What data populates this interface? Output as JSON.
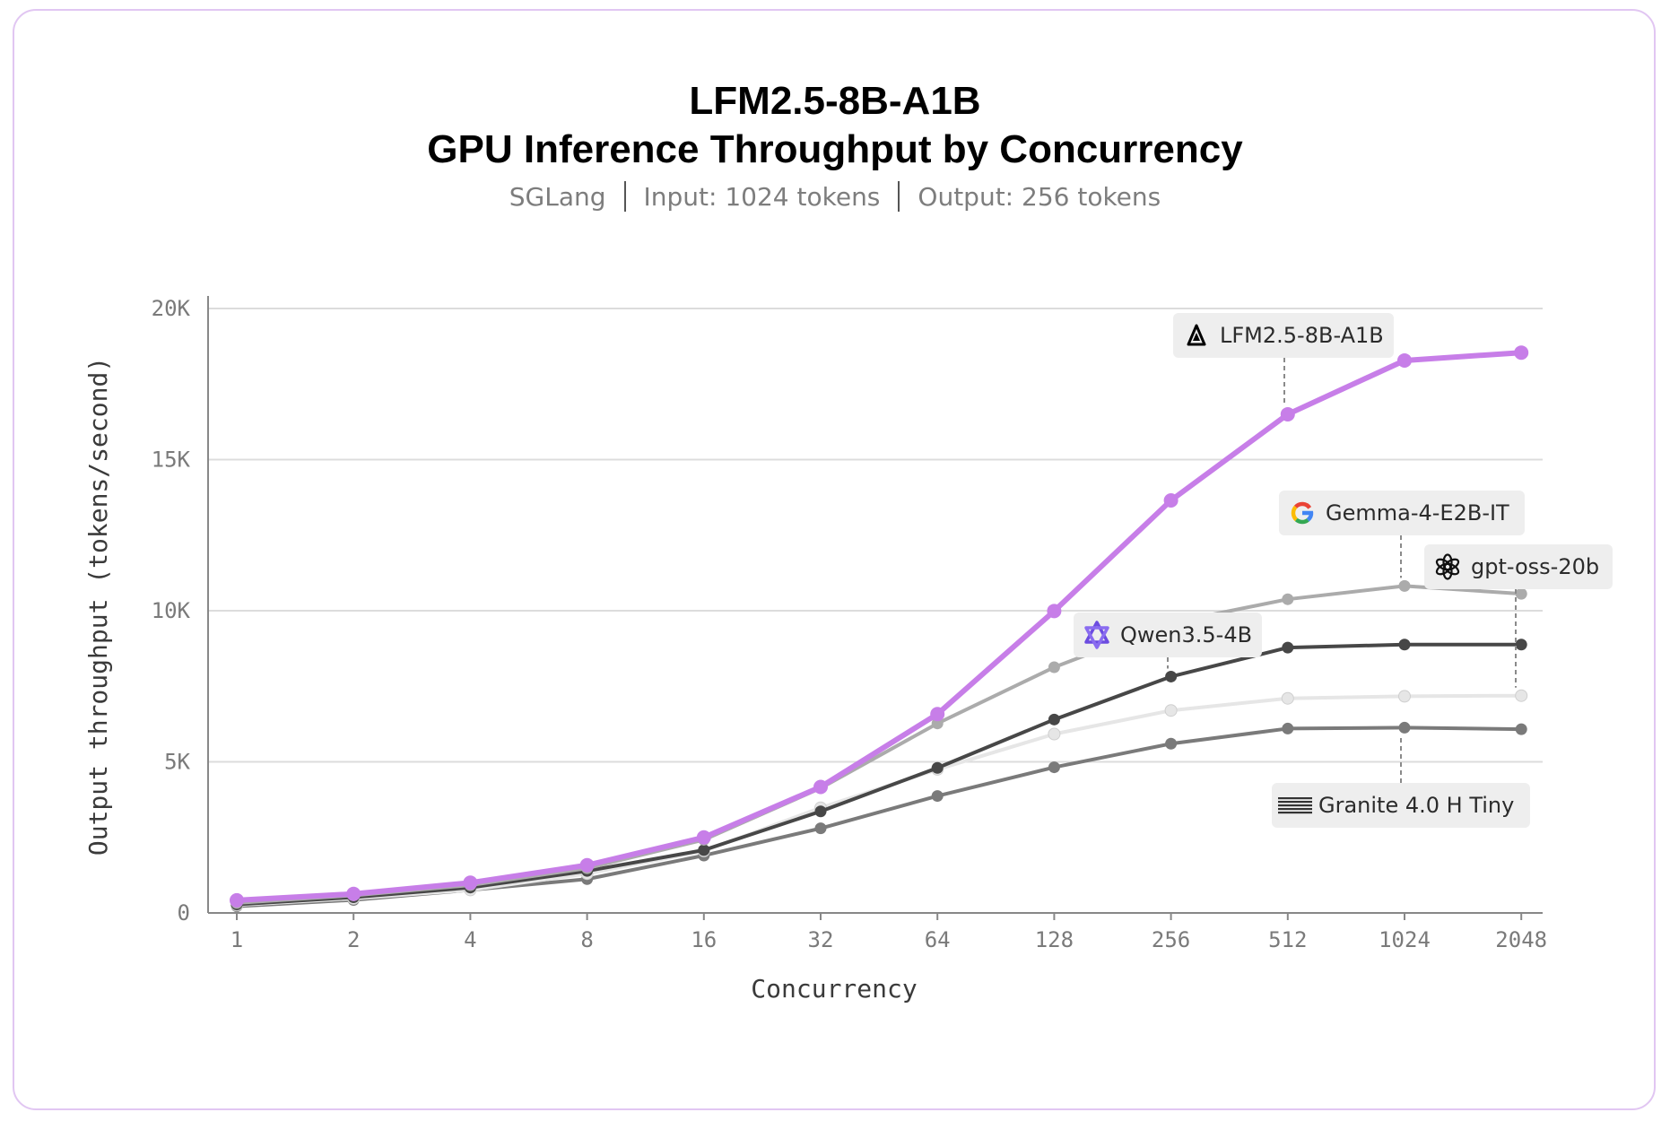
{
  "header": {
    "title_line1": "LFM2.5-8B-A1B",
    "title_line2": "GPU Inference Throughput by Concurrency",
    "subtitle_parts": [
      "SGLang",
      "Input: 1024 tokens",
      "Output: 256 tokens"
    ]
  },
  "chart_data": {
    "type": "line",
    "title": "LFM2.5-8B-A1B GPU Inference Throughput by Concurrency",
    "subtitle": "SGLang | Input: 1024 tokens | Output: 256 tokens",
    "xlabel": "Concurrency",
    "ylabel": "Output throughput (tokens/second)",
    "x": [
      "1",
      "2",
      "4",
      "8",
      "16",
      "32",
      "64",
      "128",
      "256",
      "512",
      "1024",
      "2048"
    ],
    "x_scale": "log2 (evenly spaced categories)",
    "ylim": [
      0,
      20000
    ],
    "yticks": [
      0,
      5000,
      10000,
      15000,
      20000
    ],
    "ytick_labels": [
      "0",
      "5K",
      "10K",
      "15K",
      "20K"
    ],
    "grid": "horizontal",
    "series": [
      {
        "name": "Granite 4.0 H Tiny",
        "icon": "ibm-logo-icon",
        "color": "#7a7a7a",
        "values": [
          220,
          430,
          760,
          1120,
          1900,
          2800,
          3870,
          4820,
          5600,
          6100,
          6130,
          6080
        ]
      },
      {
        "name": "gpt-oss-20b",
        "icon": "openai-logo-icon",
        "color": "#e6e6e6",
        "values": [
          260,
          480,
          760,
          1300,
          2050,
          3480,
          4750,
          5920,
          6700,
          7100,
          7170,
          7190
        ]
      },
      {
        "name": "Qwen3.5-4B",
        "icon": "qwen-logo-icon",
        "color": "#474747",
        "values": [
          280,
          520,
          840,
          1390,
          2080,
          3360,
          4800,
          6400,
          7820,
          8780,
          8880,
          8880
        ]
      },
      {
        "name": "Gemma-4-E2B-IT",
        "icon": "google-logo-icon",
        "color": "#ababab",
        "values": [
          330,
          580,
          920,
          1480,
          2420,
          4130,
          6270,
          8130,
          9600,
          10380,
          10820,
          10560
        ]
      },
      {
        "name": "LFM2.5-8B-A1B",
        "icon": "liquid-logo-icon",
        "color": "#c77ee8",
        "values": [
          420,
          630,
          1000,
          1580,
          2500,
          4170,
          6580,
          9990,
          13650,
          16500,
          18280,
          18540
        ]
      }
    ]
  }
}
